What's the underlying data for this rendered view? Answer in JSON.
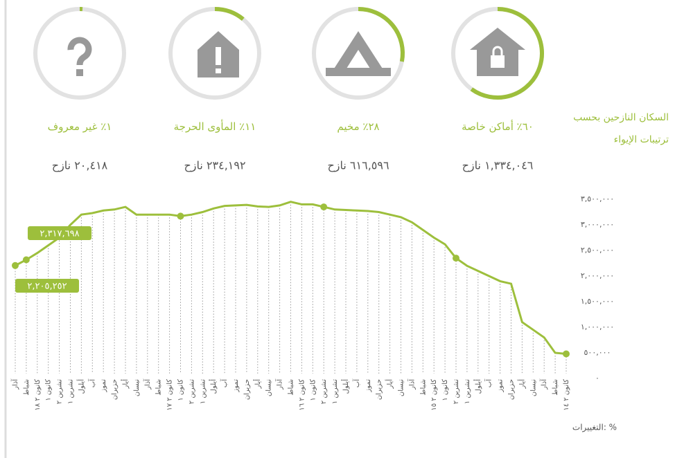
{
  "header": {
    "title_line1": "السكان النازحين بحسب",
    "title_line2": "ترتيبات الإيواء"
  },
  "shelter": {
    "labels": [
      "أماكن خاصة",
      "مخيم",
      "المأوى الحرجة",
      "غير معروف"
    ],
    "percents": [
      60,
      28,
      11,
      1
    ],
    "percent_labels": [
      "٦٠٪",
      "٢٨٪",
      "١١٪",
      "١٪"
    ],
    "counts": [
      1334046,
      616596,
      234192,
      20418
    ],
    "count_labels": [
      "١,٣٣٤,٠٤٦ نازح",
      "٦١٦,٥٩٦ نازح",
      "٢٣٤,١٩٢ نازح",
      "٢٠,٤١٨ نازح"
    ]
  },
  "chart_data": {
    "type": "line",
    "color": "#9dbf3c",
    "categories": [
      "آذار",
      "شباط",
      "كانون ٢ ١٨",
      "كانون ١",
      "تشرين ٢",
      "تشرين ١",
      "أيلول",
      "آب",
      "تموز",
      "حزيران",
      "أيار",
      "نيسان",
      "آذار",
      "شباط",
      "كانون ٢ ١٧",
      "كانون ١",
      "تشرين ٢",
      "تشرين ١",
      "أيلول",
      "آب",
      "تموز",
      "حزيران",
      "أيار",
      "نيسان",
      "آذار",
      "شباط",
      "كانون ٢ ١٦",
      "كانون ١",
      "تشرين ٢",
      "تشرين ١",
      "أيلول",
      "آب",
      "تموز",
      "حزيران",
      "أيار",
      "نيسان",
      "آذار",
      "شباط",
      "كانون ٢ ١٥",
      "كانون ١",
      "تشرين ٢",
      "تشرين ١",
      "أيلول",
      "آب",
      "تموز",
      "حزيران",
      "أيار",
      "نيسان",
      "آذار",
      "شباط",
      "كانون ٢ ١٤"
    ],
    "values": [
      2205252,
      2317698,
      2450000,
      2600000,
      2750000,
      3000000,
      3200000,
      3230000,
      3280000,
      3300000,
      3350000,
      3200000,
      3200000,
      3200000,
      3200000,
      3170000,
      3200000,
      3250000,
      3320000,
      3370000,
      3380000,
      3390000,
      3360000,
      3350000,
      3380000,
      3450000,
      3400000,
      3400000,
      3350000,
      3300000,
      3290000,
      3280000,
      3270000,
      3250000,
      3200000,
      3150000,
      3050000,
      2900000,
      2750000,
      2620000,
      2350000,
      2200000,
      2100000,
      2000000,
      1900000,
      1850000,
      1100000,
      950000,
      800000,
      500000,
      480000
    ],
    "value_labels": [
      "٢,٢٠٥,٢٥٢",
      "٢,٣١٧,٦٩٨",
      null,
      null,
      null,
      null,
      null,
      null,
      null,
      null,
      null,
      null,
      null,
      null,
      null,
      null,
      null,
      null,
      null,
      null,
      null,
      null,
      null,
      null,
      null,
      null,
      null,
      null,
      null,
      null,
      null,
      null,
      null,
      null,
      null,
      null,
      null,
      null,
      null,
      null,
      null,
      null,
      null,
      null,
      null,
      null,
      null,
      null,
      null,
      null,
      null
    ],
    "ylim": [
      0,
      3500000
    ],
    "yticks": [
      {
        "value": 0,
        "label": "٠"
      },
      {
        "value": 500000,
        "label": "٥٠٠,٠٠٠"
      },
      {
        "value": 1000000,
        "label": "١,٠٠٠,٠٠٠"
      },
      {
        "value": 1500000,
        "label": "١,٥٠٠,٠٠٠"
      },
      {
        "value": 2000000,
        "label": "٢,٠٠٠,٠٠٠"
      },
      {
        "value": 2500000,
        "label": "٢,٥٠٠,٠٠٠"
      },
      {
        "value": 3000000,
        "label": "٣,٠٠٠,٠٠٠"
      },
      {
        "value": 3500000,
        "label": "٣,٥٠٠,٠٠٠"
      }
    ],
    "changes_label": "التغييرات: %"
  }
}
